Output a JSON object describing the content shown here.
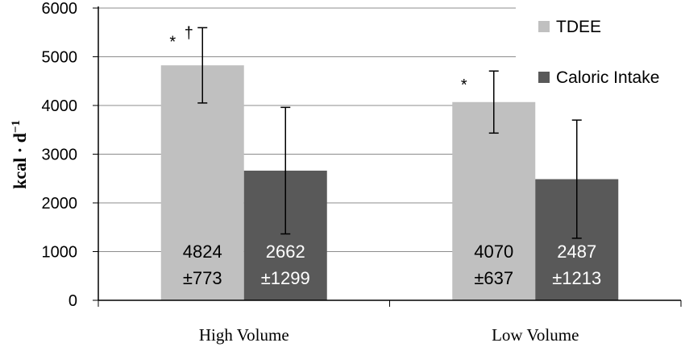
{
  "chart_data": {
    "type": "bar",
    "categories": [
      "High Volume",
      "Low Volume"
    ],
    "series": [
      {
        "name": "TDEE",
        "values": [
          4824,
          4070
        ],
        "errors": [
          773,
          637
        ],
        "labels": [
          "4824",
          "4070"
        ],
        "sub_labels": [
          "±773",
          "±637"
        ],
        "color": "#c0c0c0",
        "label_color": "#000000"
      },
      {
        "name": "Caloric Intake",
        "values": [
          2662,
          2487
        ],
        "errors": [
          1299,
          1213
        ],
        "labels": [
          "2662",
          "2487"
        ],
        "sub_labels": [
          "±1299",
          "±1213"
        ],
        "color": "#595959",
        "label_color": "#ffffff"
      }
    ],
    "ylabel": "kcal · d",
    "ylabel_sup": "−1",
    "ylim": [
      0,
      6000
    ],
    "yticks": [
      "0",
      "1000",
      "2000",
      "3000",
      "4000",
      "5000",
      "6000"
    ],
    "grid": true,
    "legend_position": "top-right",
    "significance_marks": [
      {
        "category": 0,
        "series": 0,
        "text": "*",
        "dagger": "†"
      },
      {
        "category": 1,
        "series": 0,
        "text": "*",
        "dagger": ""
      }
    ]
  }
}
